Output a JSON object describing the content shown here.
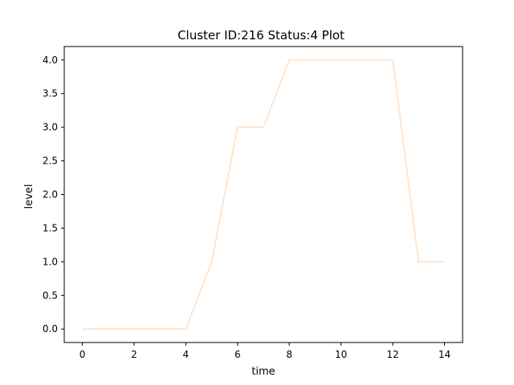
{
  "chart_data": {
    "type": "line",
    "title": "Cluster ID:216 Status:4 Plot",
    "xlabel": "time",
    "ylabel": "level",
    "xlim": [
      -0.7,
      14.7
    ],
    "ylim": [
      -0.2,
      4.2
    ],
    "xticks": [
      0,
      2,
      4,
      6,
      8,
      10,
      12,
      14
    ],
    "yticks": [
      0.0,
      0.5,
      1.0,
      1.5,
      2.0,
      2.5,
      3.0,
      3.5,
      4.0
    ],
    "grid": false,
    "series": [
      {
        "color": "#ffe5d0",
        "x": [
          0,
          1,
          2,
          3,
          4,
          5,
          6,
          7,
          8,
          9,
          10,
          11,
          12,
          13,
          14
        ],
        "y": [
          0,
          0,
          0,
          0,
          0,
          1,
          3,
          3,
          4,
          4,
          4,
          4,
          4,
          1,
          1
        ]
      }
    ]
  }
}
